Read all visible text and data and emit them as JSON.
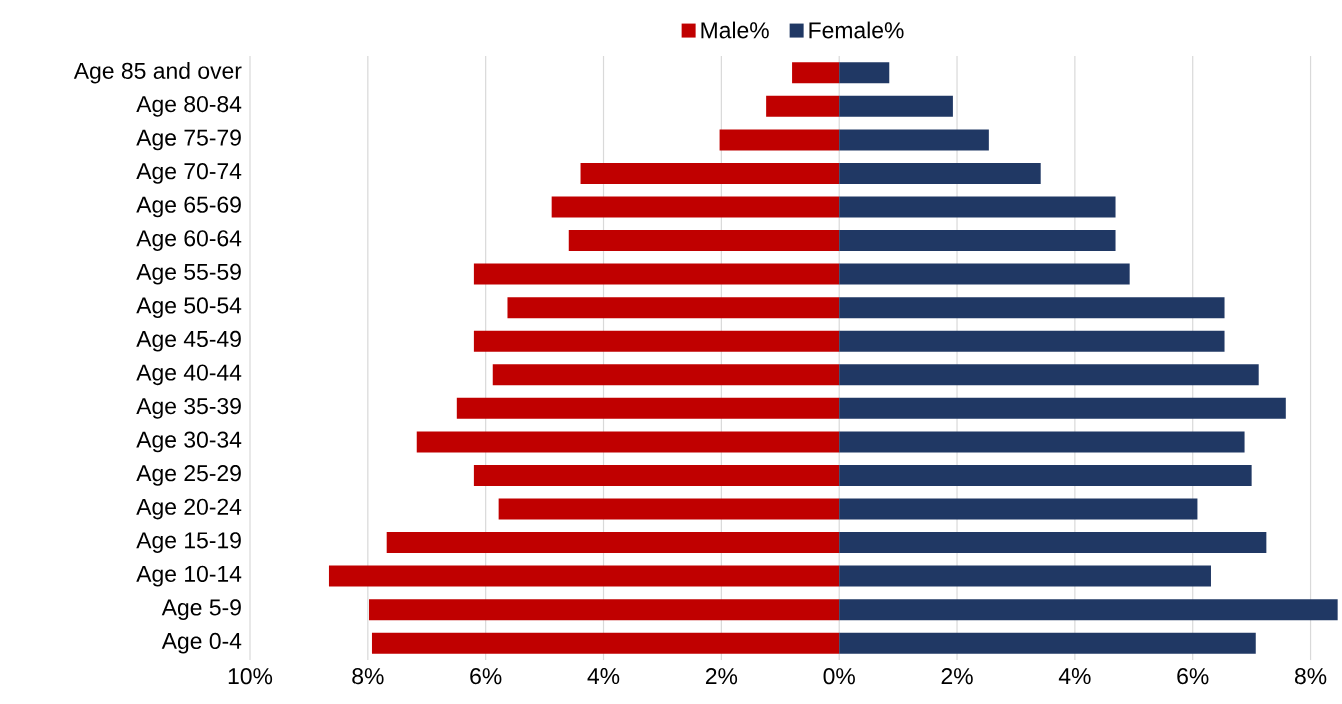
{
  "chart_data": {
    "type": "bar",
    "orientation": "horizontal",
    "categories": [
      "Age 85 and over",
      "Age 80-84",
      "Age 75-79",
      "Age 70-74",
      "Age 65-69",
      "Age 60-64",
      "Age 55-59",
      "Age 50-54",
      "Age 45-49",
      "Age 40-44",
      "Age 35-39",
      "Age 30-34",
      "Age 25-29",
      "Age 20-24",
      "Age 15-19",
      "Age 10-14",
      "Age 5-9",
      "Age 0-4"
    ],
    "series": [
      {
        "name": "Male%",
        "color": "#c00000",
        "values": [
          -0.8,
          -1.24,
          -2.03,
          -4.39,
          -4.88,
          -4.59,
          -6.2,
          -5.63,
          -6.2,
          -5.88,
          -6.49,
          -7.17,
          -6.2,
          -5.78,
          -7.68,
          -8.66,
          -7.98,
          -7.93
        ]
      },
      {
        "name": "Female%",
        "color": "#203864",
        "values": [
          0.85,
          1.93,
          2.54,
          3.42,
          4.69,
          4.69,
          4.93,
          6.54,
          6.54,
          7.12,
          7.58,
          6.88,
          7.0,
          6.08,
          7.25,
          6.31,
          8.46,
          7.07
        ]
      }
    ],
    "xlim": [
      -10,
      8.5
    ],
    "xticks": [
      {
        "value": -10,
        "label": "10%"
      },
      {
        "value": -8,
        "label": "8%"
      },
      {
        "value": -6,
        "label": "6%"
      },
      {
        "value": -4,
        "label": "4%"
      },
      {
        "value": -2,
        "label": "2%"
      },
      {
        "value": 0,
        "label": "0%"
      },
      {
        "value": 2,
        "label": "2%"
      },
      {
        "value": 4,
        "label": "4%"
      },
      {
        "value": 6,
        "label": "6%"
      },
      {
        "value": 8,
        "label": "8%"
      }
    ],
    "grid": "x",
    "legend": "top",
    "stacked": true
  }
}
